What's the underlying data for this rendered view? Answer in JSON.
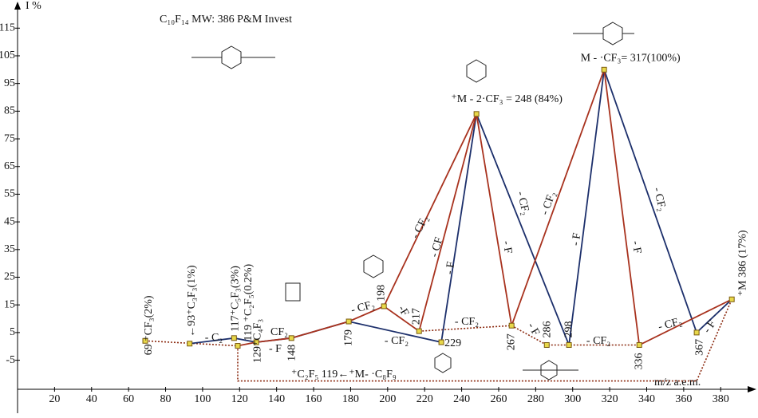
{
  "chart_data": {
    "type": "fragmentation",
    "title": "C₁₀F₁₄  MW: 386  P&M Invest",
    "xlabel": "m/z  a.e.m.",
    "ylabel": "I %",
    "xlim": [
      0,
      398
    ],
    "ylim": [
      -15.5,
      122
    ],
    "xticks": [
      20,
      40,
      60,
      80,
      100,
      120,
      140,
      160,
      180,
      200,
      220,
      240,
      260,
      280,
      300,
      320,
      340,
      360,
      380
    ],
    "yticks": [
      -5,
      5,
      15,
      25,
      35,
      45,
      55,
      65,
      75,
      85,
      95,
      105,
      115
    ],
    "points": {
      "x": [
        69,
        93,
        117,
        119,
        129,
        148,
        179,
        198,
        217,
        229,
        248,
        267,
        286,
        298,
        317,
        336,
        367,
        386
      ],
      "values": [
        2,
        1,
        3,
        0.2,
        1.5,
        3,
        9,
        14.5,
        5.5,
        1.5,
        84,
        7.5,
        0.5,
        0.5,
        100,
        0.5,
        5,
        17
      ],
      "labels": [
        "69 ⁺CF₃(2%)",
        "←93⁺C₃F₃(1%)",
        "117⁺C₅F₃(3%)",
        "119 ⁺C₂F₅(0.2%)",
        "129⁺C₄F₃",
        "148",
        "179",
        "198",
        "217",
        "229",
        "⁺M - 2·CF₃ = 248 (84%)",
        "267",
        "286",
        "298",
        "M - ·CF₃= 317(100%)",
        "336",
        "367",
        "⁺M 386 (17%)"
      ],
      "color": "#e8d84a"
    },
    "series": [
      {
        "color": "#8b2a10",
        "style": "dotted",
        "x": [
          69,
          119
        ],
        "values": [
          2,
          0.2
        ]
      },
      {
        "color": "#8b2a10",
        "style": "dotted",
        "x": [
          119,
          119,
          367,
          386
        ],
        "values": [
          0.2,
          -12.5,
          -12.5,
          17
        ]
      },
      {
        "color": "#8b2a10",
        "style": "dotted",
        "x": [
          217,
          267,
          286,
          298,
          336
        ],
        "values": [
          5.5,
          7.5,
          0.5,
          0.5,
          0.5
        ]
      },
      {
        "color": "#1c2f6b",
        "style": "solid",
        "x": [
          93,
          117,
          129,
          148,
          179,
          229,
          248,
          298,
          317,
          367,
          386
        ],
        "values": [
          1,
          3,
          1.5,
          3,
          9,
          1.5,
          84,
          0.5,
          100,
          5,
          17
        ]
      },
      {
        "color": "#a8321e",
        "style": "solid",
        "x": [
          119,
          129,
          148,
          179,
          198,
          248,
          267,
          317,
          336,
          386
        ],
        "values": [
          0.2,
          1.5,
          3,
          9,
          14.5,
          84,
          7.5,
          100,
          0.5,
          17
        ]
      },
      {
        "color": "#a8321e",
        "style": "solid",
        "x": [
          198,
          217,
          248
        ],
        "values": [
          14.5,
          5.5,
          84
        ]
      }
    ],
    "annotations": [
      {
        "text": "- C₂",
        "color": "#1c2f6b"
      },
      {
        "text": "CF₂",
        "color": "#1c2f6b"
      },
      {
        "text": "- F",
        "color": "#a8321e"
      },
      {
        "text": "- CF₂",
        "color": "#a8321e"
      },
      {
        "text": "- CF₂",
        "color": "#1c2f6b"
      },
      {
        "text": "-F",
        "color": "#a8321e"
      },
      {
        "text": "- CF₂",
        "color": "#a8321e"
      },
      {
        "text": "- CF",
        "color": "#a8321e"
      },
      {
        "text": "- F",
        "color": "#1c2f6b"
      },
      {
        "text": "- F",
        "color": "#a8321e"
      },
      {
        "text": "- CF₂",
        "color": "#1c2f6b"
      },
      {
        "text": "- CF₂",
        "color": "#a8321e"
      },
      {
        "text": "- F",
        "color": "#a8321e"
      },
      {
        "text": "- CF₂",
        "color": "#a8321e"
      },
      {
        "text": "- CF₂",
        "color": "#a8321e"
      },
      {
        "text": "- F",
        "color": "#1c2f6b"
      },
      {
        "text": "- F",
        "color": "#a8321e"
      },
      {
        "text": "- CF₂",
        "color": "#1c2f6b"
      },
      {
        "text": "- CF₂",
        "color": "#a8321e"
      },
      {
        "text": "- F",
        "color": "#1c2f6b"
      },
      {
        "text": "⁺C₂F₅ 119←⁺M- ·C₈F₉",
        "color": "#a8321e"
      }
    ]
  }
}
